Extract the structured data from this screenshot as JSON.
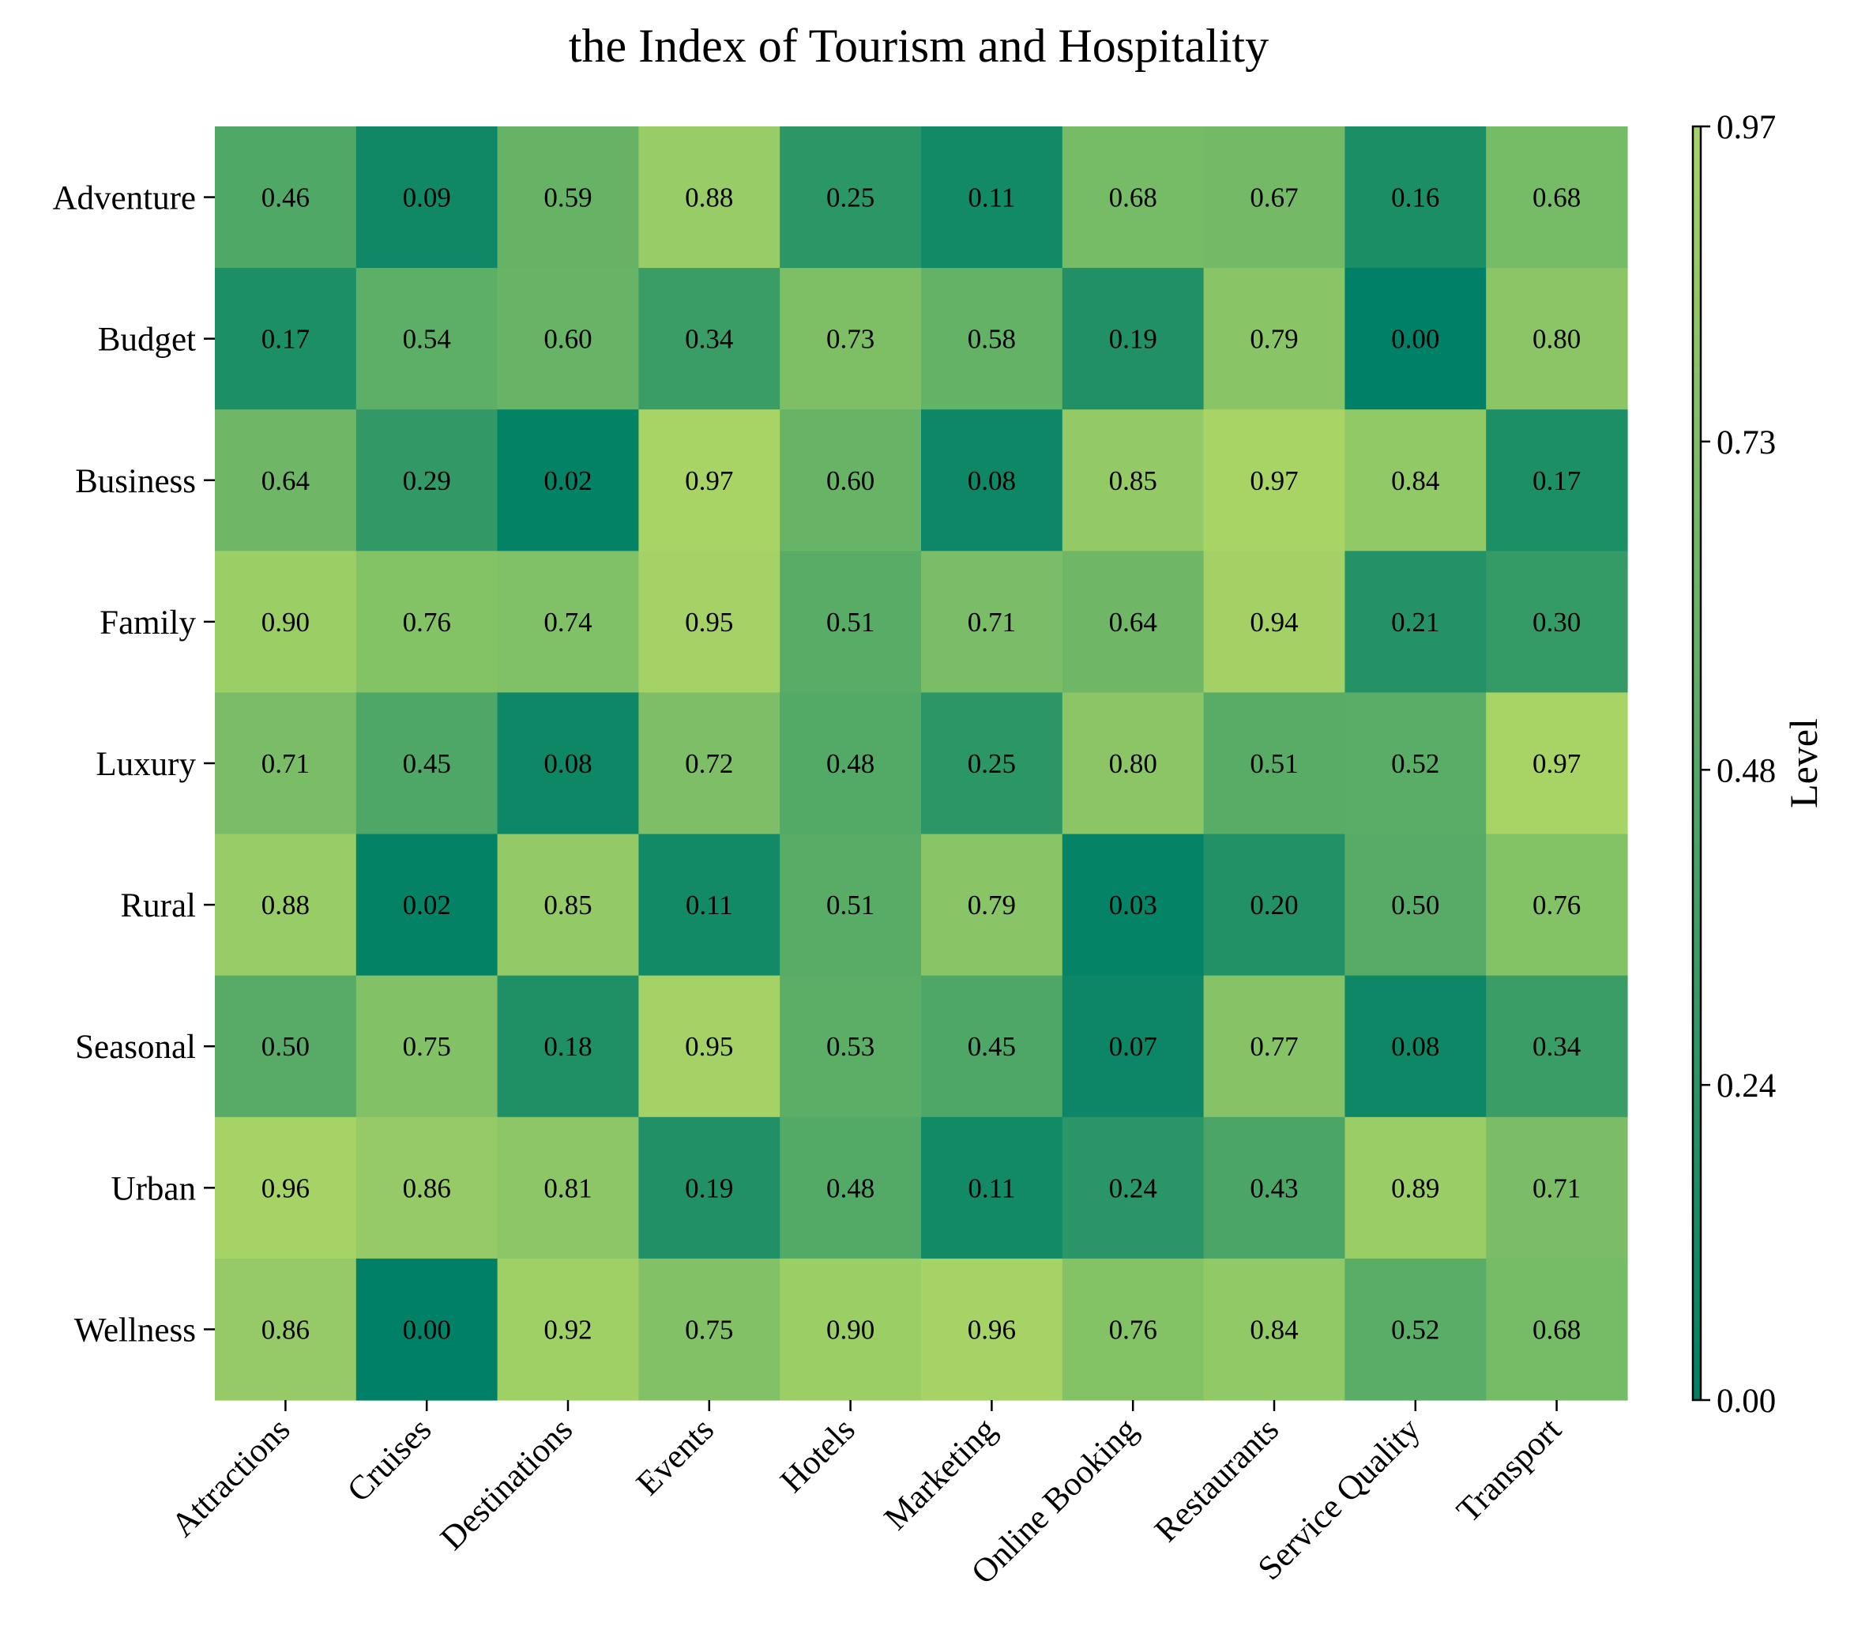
{
  "chart_data": {
    "type": "heatmap",
    "title": "the Index of Tourism and Hospitality",
    "x_categories": [
      "Attractions",
      "Cruises",
      "Destinations",
      "Events",
      "Hotels",
      "Marketing",
      "Online Booking",
      "Restaurants",
      "Service Quality",
      "Transport"
    ],
    "y_categories": [
      "Adventure",
      "Budget",
      "Business",
      "Family",
      "Luxury",
      "Rural",
      "Seasonal",
      "Urban",
      "Wellness"
    ],
    "values": [
      [
        0.46,
        0.09,
        0.59,
        0.88,
        0.25,
        0.11,
        0.68,
        0.67,
        0.16,
        0.68
      ],
      [
        0.17,
        0.54,
        0.6,
        0.34,
        0.73,
        0.58,
        0.19,
        0.79,
        0.0,
        0.8
      ],
      [
        0.64,
        0.29,
        0.02,
        0.97,
        0.6,
        0.08,
        0.85,
        0.97,
        0.84,
        0.17
      ],
      [
        0.9,
        0.76,
        0.74,
        0.95,
        0.51,
        0.71,
        0.64,
        0.94,
        0.21,
        0.3
      ],
      [
        0.71,
        0.45,
        0.08,
        0.72,
        0.48,
        0.25,
        0.8,
        0.51,
        0.52,
        0.97
      ],
      [
        0.88,
        0.02,
        0.85,
        0.11,
        0.51,
        0.79,
        0.03,
        0.2,
        0.5,
        0.76
      ],
      [
        0.5,
        0.75,
        0.18,
        0.95,
        0.53,
        0.45,
        0.07,
        0.77,
        0.08,
        0.34
      ],
      [
        0.96,
        0.86,
        0.81,
        0.19,
        0.48,
        0.11,
        0.24,
        0.43,
        0.89,
        0.71
      ],
      [
        0.86,
        0.0,
        0.92,
        0.75,
        0.9,
        0.96,
        0.76,
        0.84,
        0.52,
        0.68
      ]
    ],
    "value_labels_format": "2 decimals",
    "colorbar": {
      "label": "Level",
      "range": [
        0,
        0.97
      ],
      "ticks": [
        "0.00",
        "0.24",
        "0.48",
        "0.73",
        "0.97"
      ],
      "colormap": "summer-like green",
      "color_low": "#008066",
      "color_high": "#A8D466"
    },
    "grid": false
  }
}
